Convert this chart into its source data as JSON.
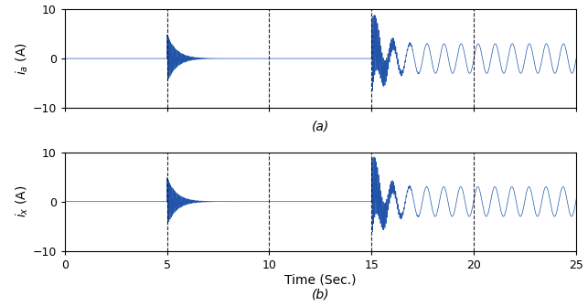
{
  "xlim": [
    0,
    25
  ],
  "ylim": [
    -10,
    10
  ],
  "yticks": [
    -10,
    0,
    10
  ],
  "xticks": [
    0,
    5,
    10,
    15,
    20,
    25
  ],
  "vlines": [
    5,
    10,
    15,
    20
  ],
  "xlabel": "Time (Sec.)",
  "ylabel_a": "$i_a$ (A)",
  "ylabel_x": "$i_x$ (A)",
  "label_a": "(a)",
  "label_b": "(b)",
  "line_color": "#2255aa",
  "background_color": "#ffffff",
  "figsize": [
    6.43,
    3.35
  ],
  "dpi": 100,
  "t1": 5.0,
  "t2": 15.0,
  "t_end": 25.0,
  "region1_amp": 5.0,
  "region1_decay": 2.2,
  "region1_freq": 18.0,
  "region2_amp": 8.0,
  "region2_decay": 1.8,
  "region2_freq": 18.0,
  "region2_ss_amp": 3.0,
  "region2_ss_freq": 1.2
}
